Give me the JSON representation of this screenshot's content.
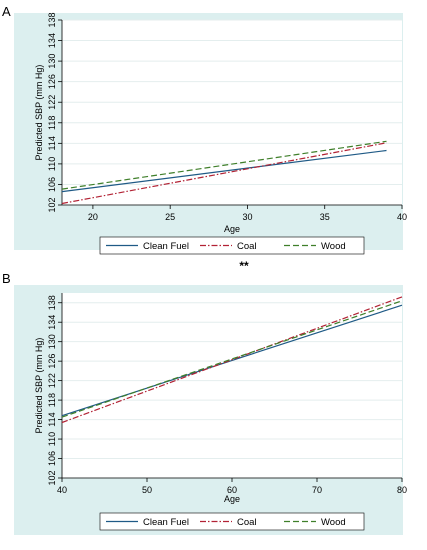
{
  "panel_a_label": "A",
  "panel_b_label": "B",
  "separator_text": "**",
  "colors": {
    "clean": "#1f5a86",
    "coal": "#b22234",
    "wood": "#3f7f2a",
    "panel_bg": "#dcefef"
  },
  "chart_data": [
    {
      "type": "line",
      "panel": "A",
      "xlabel": "Age",
      "ylabel": "Predicted SBP (mm Hg)",
      "xlim": [
        18,
        40
      ],
      "ylim": [
        102,
        138
      ],
      "xticks": [
        20,
        25,
        30,
        35,
        40
      ],
      "yticks": [
        102,
        106,
        110,
        114,
        118,
        122,
        126,
        130,
        134,
        138
      ],
      "legend_position": "bottom",
      "grid": true,
      "series": [
        {
          "name": "Clean Fuel",
          "style": "solid",
          "x": [
            18,
            39
          ],
          "y": [
            104.6,
            112.6
          ]
        },
        {
          "name": "Coal",
          "style": "dash-dot",
          "x": [
            18,
            39
          ],
          "y": [
            102.3,
            114.1
          ]
        },
        {
          "name": "Wood",
          "style": "dashed",
          "x": [
            18,
            39
          ],
          "y": [
            105.1,
            114.4
          ]
        }
      ]
    },
    {
      "type": "line",
      "panel": "B",
      "xlabel": "Age",
      "ylabel": "Predicted SBP (mm Hg)",
      "xlim": [
        40,
        80
      ],
      "ylim": [
        102,
        140
      ],
      "xticks": [
        40,
        50,
        60,
        70,
        80
      ],
      "yticks": [
        102,
        106,
        110,
        114,
        118,
        122,
        126,
        130,
        134,
        138
      ],
      "legend_position": "bottom",
      "grid": true,
      "series": [
        {
          "name": "Clean Fuel",
          "style": "solid",
          "x": [
            40,
            80
          ],
          "y": [
            114.8,
            137.5
          ]
        },
        {
          "name": "Coal",
          "style": "dash-dot",
          "x": [
            40,
            80
          ],
          "y": [
            113.4,
            139.2
          ]
        },
        {
          "name": "Wood",
          "style": "dashed",
          "x": [
            40,
            80
          ],
          "y": [
            114.5,
            138.4
          ]
        }
      ]
    }
  ]
}
